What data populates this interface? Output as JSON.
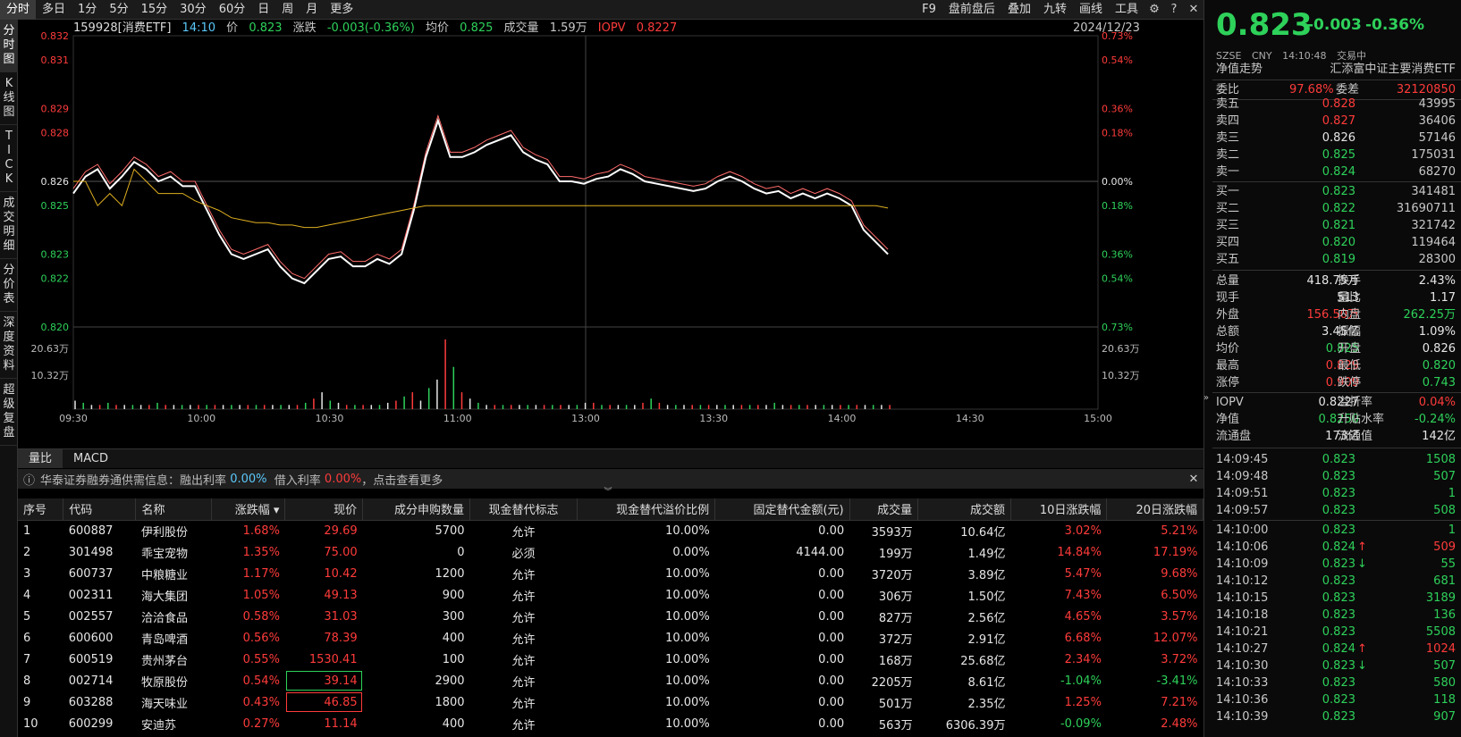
{
  "toolbar": {
    "left": [
      "分时",
      "多日",
      "1分",
      "5分",
      "15分",
      "30分",
      "60分",
      "日",
      "周",
      "月",
      "更多"
    ],
    "active": "分时",
    "right": [
      "F9",
      "盘前盘后",
      "叠加",
      "九转",
      "画线",
      "工具"
    ]
  },
  "vtabs": [
    "分时图",
    "K线图",
    "TICK",
    "成交明细",
    "分价表",
    "深度资料",
    "超级复盘"
  ],
  "header": {
    "code": "159928[消费ETF]",
    "time": "14:10",
    "price_label": "价",
    "price": "0.823",
    "chg_label": "涨跌",
    "chg": "-0.003(-0.36%)",
    "avg_label": "均价",
    "avg": "0.825",
    "vol_label": "成交量",
    "vol": "1.59万",
    "iopv_label": "IOPV",
    "iopv": "0.8227",
    "date": "2024/12/23"
  },
  "chart_data": {
    "type": "line",
    "prev_close": 0.826,
    "y_ticks_left": [
      "0.832",
      "0.831",
      "0.829",
      "0.828",
      "0.826",
      "0.825",
      "0.823",
      "0.822",
      "0.820"
    ],
    "y_ticks_right": [
      "0.73%",
      "0.54%",
      "0.36%",
      "0.18%",
      "0.00%",
      "0.18%",
      "0.36%",
      "0.54%",
      "0.73%"
    ],
    "vol_ticks": [
      "20.63万",
      "10.32万"
    ],
    "x_ticks": [
      "09:30",
      "10:00",
      "10:30",
      "11:00",
      "13:00",
      "13:30",
      "14:00",
      "14:30",
      "15:00"
    ],
    "series": [
      {
        "values": [
          0.8255,
          0.8262,
          0.8265,
          0.8257,
          0.8262,
          0.8268,
          0.8265,
          0.826,
          0.8262,
          0.8258,
          0.8258,
          0.8248,
          0.8238,
          0.823,
          0.8228,
          0.823,
          0.8232,
          0.8225,
          0.822,
          0.8218,
          0.8223,
          0.8228,
          0.8229,
          0.8225,
          0.8225,
          0.8228,
          0.8226,
          0.823,
          0.8248,
          0.827,
          0.8285,
          0.827,
          0.827,
          0.8272,
          0.8275,
          0.8277,
          0.8279,
          0.8272,
          0.8269,
          0.8267,
          0.826,
          0.826,
          0.8259,
          0.8261,
          0.8262,
          0.8265,
          0.8263,
          0.826,
          0.8259,
          0.8258,
          0.8257,
          0.8256,
          0.8257,
          0.826,
          0.8262,
          0.826,
          0.8257,
          0.8255,
          0.8256,
          0.8253,
          0.8255,
          0.8253,
          0.8255,
          0.8253,
          0.825,
          0.824,
          0.8235,
          0.823
        ]
      },
      {
        "values": [
          0.826,
          0.826,
          0.825,
          0.8255,
          0.825,
          0.8265,
          0.826,
          0.8255,
          0.8255,
          0.8255,
          0.8252,
          0.825,
          0.8248,
          0.8245,
          0.8244,
          0.8243,
          0.8243,
          0.8242,
          0.8242,
          0.8241,
          0.8241,
          0.8242,
          0.8243,
          0.8244,
          0.8245,
          0.8246,
          0.8247,
          0.8248,
          0.8249,
          0.825,
          0.825,
          0.825,
          0.825,
          0.825,
          0.825,
          0.825,
          0.825,
          0.825,
          0.825,
          0.825,
          0.825,
          0.825,
          0.825,
          0.825,
          0.825,
          0.825,
          0.825,
          0.825,
          0.825,
          0.825,
          0.825,
          0.825,
          0.825,
          0.825,
          0.825,
          0.825,
          0.825,
          0.825,
          0.825,
          0.825,
          0.825,
          0.825,
          0.825,
          0.825,
          0.825,
          0.825,
          0.825,
          0.8249
        ]
      }
    ],
    "volume": [
      4,
      3,
      2,
      2,
      3,
      2,
      2,
      2,
      2,
      2,
      3,
      2,
      2,
      2,
      2,
      2,
      2,
      2,
      2,
      2,
      2,
      2,
      2,
      2,
      2,
      2,
      2,
      2,
      3,
      5,
      8,
      4,
      3,
      2,
      2,
      2,
      2,
      2,
      3,
      4,
      6,
      8,
      4,
      10,
      14,
      33,
      20,
      8,
      5,
      3,
      2,
      2,
      2,
      2,
      2,
      2,
      2,
      2,
      2,
      2,
      2,
      2,
      3,
      3,
      2,
      2,
      2,
      2,
      2,
      3,
      5,
      3,
      2,
      2,
      2,
      2,
      2,
      2,
      2,
      2,
      2,
      2,
      2,
      2,
      2,
      3,
      2,
      2,
      2,
      2,
      2,
      2,
      2,
      2,
      2,
      2,
      2,
      2,
      2,
      2
    ]
  },
  "ind_tabs": [
    "量比",
    "MACD"
  ],
  "notice": {
    "prefix": "华泰证券融券通供需信息：",
    "l1": "融出利率",
    "v1": "0.00%",
    "l2": "借入利率",
    "v2": "0.00%",
    "suffix": "，点击查看更多"
  },
  "table": {
    "headers": [
      "序号",
      "代码",
      "名称",
      "涨跌幅 ▾",
      "现价",
      "成分申购数量",
      "现金替代标志",
      "现金替代溢价比例",
      "固定替代金额(元)",
      "成交量",
      "成交额",
      "10日涨跌幅",
      "20日涨跌幅"
    ],
    "rows": [
      [
        "1",
        "600887",
        "伊利股份",
        "1.68%",
        "29.69",
        "5700",
        "允许",
        "10.00%",
        "0.00",
        "3593万",
        "10.64亿",
        "3.02%",
        "5.21%"
      ],
      [
        "2",
        "301498",
        "乖宝宠物",
        "1.35%",
        "75.00",
        "0",
        "必须",
        "0.00%",
        "4144.00",
        "199万",
        "1.49亿",
        "14.84%",
        "17.19%"
      ],
      [
        "3",
        "600737",
        "中粮糖业",
        "1.17%",
        "10.42",
        "1200",
        "允许",
        "10.00%",
        "0.00",
        "3720万",
        "3.89亿",
        "5.47%",
        "9.68%"
      ],
      [
        "4",
        "002311",
        "海大集团",
        "1.05%",
        "49.13",
        "900",
        "允许",
        "10.00%",
        "0.00",
        "306万",
        "1.50亿",
        "7.43%",
        "6.50%"
      ],
      [
        "5",
        "002557",
        "洽洽食品",
        "0.58%",
        "31.03",
        "300",
        "允许",
        "10.00%",
        "0.00",
        "827万",
        "2.56亿",
        "4.65%",
        "3.57%"
      ],
      [
        "6",
        "600600",
        "青岛啤酒",
        "0.56%",
        "78.39",
        "400",
        "允许",
        "10.00%",
        "0.00",
        "372万",
        "2.91亿",
        "6.68%",
        "12.07%"
      ],
      [
        "7",
        "600519",
        "贵州茅台",
        "0.55%",
        "1530.41",
        "100",
        "允许",
        "10.00%",
        "0.00",
        "168万",
        "25.68亿",
        "2.34%",
        "3.72%"
      ],
      [
        "8",
        "002714",
        "牧原股份",
        "0.54%",
        "39.14",
        "2900",
        "允许",
        "10.00%",
        "0.00",
        "2205万",
        "8.61亿",
        "-1.04%",
        "-3.41%"
      ],
      [
        "9",
        "603288",
        "海天味业",
        "0.43%",
        "46.85",
        "1800",
        "允许",
        "10.00%",
        "0.00",
        "501万",
        "2.35亿",
        "1.25%",
        "7.21%"
      ],
      [
        "10",
        "600299",
        "安迪苏",
        "0.27%",
        "11.14",
        "400",
        "允许",
        "10.00%",
        "0.00",
        "563万",
        "6306.39万",
        "-0.09%",
        "2.48%"
      ]
    ]
  },
  "quote": {
    "price": "0.823",
    "chg": "-0.003",
    "pct": "-0.36%",
    "exchange": "SZSE",
    "currency": "CNY",
    "time": "14:10:48",
    "status": "交易中",
    "nav_trend": "净值走势",
    "fund_name": "汇添富中证主要消费ETF",
    "webi_label": "委比",
    "webi": "97.68%",
    "wecha_label": "委差",
    "wecha": "32120850",
    "asks": [
      [
        "卖五",
        "0.828",
        "43995"
      ],
      [
        "卖四",
        "0.827",
        "36406"
      ],
      [
        "卖三",
        "0.826",
        "57146"
      ],
      [
        "卖二",
        "0.825",
        "175031"
      ],
      [
        "卖一",
        "0.824",
        "68270"
      ]
    ],
    "bids": [
      [
        "买一",
        "0.823",
        "341481"
      ],
      [
        "买二",
        "0.822",
        "31690711"
      ],
      [
        "买三",
        "0.821",
        "321742"
      ],
      [
        "买四",
        "0.820",
        "119464"
      ],
      [
        "买五",
        "0.819",
        "28300"
      ]
    ],
    "stats": [
      [
        "总量",
        "418.75万",
        "换手",
        "2.43%"
      ],
      [
        "现手",
        "513",
        "量比",
        "1.17"
      ],
      [
        "外盘",
        "156.50万",
        "内盘",
        "262.25万"
      ],
      [
        "总额",
        "3.45亿",
        "振幅",
        "1.09%"
      ],
      [
        "均价",
        "0.825",
        "开盘",
        "0.826"
      ],
      [
        "最高",
        "0.829",
        "最低",
        "0.820"
      ],
      [
        "涨停",
        "0.909",
        "跌停",
        "0.743"
      ],
      [
        "IOPV",
        "0.8227",
        "溢折率",
        "0.04%"
      ],
      [
        "净值",
        "0.8250",
        "升贴水率",
        "-0.24%"
      ],
      [
        "流通盘",
        "173亿",
        "流通值",
        "142亿"
      ]
    ],
    "ticks": [
      [
        "14:09:45",
        "0.823",
        "",
        "1508"
      ],
      [
        "14:09:48",
        "0.823",
        "",
        "507"
      ],
      [
        "14:09:51",
        "0.823",
        "",
        "1"
      ],
      [
        "14:09:57",
        "0.823",
        "",
        "508"
      ],
      [
        "14:10:00",
        "0.823",
        "",
        "1"
      ],
      [
        "14:10:06",
        "0.824",
        "↑",
        "509"
      ],
      [
        "14:10:09",
        "0.823",
        "↓",
        "55"
      ],
      [
        "14:10:12",
        "0.823",
        "",
        "681"
      ],
      [
        "14:10:15",
        "0.823",
        "",
        "3189"
      ],
      [
        "14:10:18",
        "0.823",
        "",
        "136"
      ],
      [
        "14:10:21",
        "0.823",
        "",
        "5508"
      ],
      [
        "14:10:27",
        "0.824",
        "↑",
        "1024"
      ],
      [
        "14:10:30",
        "0.823",
        "↓",
        "507"
      ],
      [
        "14:10:33",
        "0.823",
        "",
        "580"
      ],
      [
        "14:10:36",
        "0.823",
        "",
        "118"
      ],
      [
        "14:10:39",
        "0.823",
        "",
        "907"
      ]
    ]
  },
  "colors": {
    "up": "#ff3b3b",
    "down": "#2ed15a",
    "flat": "#e6e6e6",
    "price_line": "#ffffff",
    "avg_line": "#e0b020",
    "iopv_line": "#ff6b6b"
  }
}
